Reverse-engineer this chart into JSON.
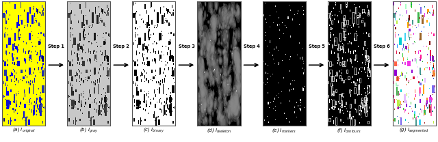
{
  "figure_width": 6.4,
  "figure_height": 2.08,
  "dpi": 100,
  "panels": [
    {
      "label": "(a) $I_{original}$",
      "type": "original"
    },
    {
      "label": "(b) $I_{gray}$",
      "type": "gray"
    },
    {
      "label": "(c) $I_{binary}$",
      "type": "binary"
    },
    {
      "label": "(d) $I_{skeleton}$",
      "type": "skeleton"
    },
    {
      "label": "(e) $I_{markers}$",
      "type": "markers"
    },
    {
      "label": "(f) $I_{contours}$",
      "type": "contours"
    },
    {
      "label": "(g) $I_{segmented}$",
      "type": "segmented"
    }
  ],
  "arrows": [
    "Step 1",
    "Step 2",
    "Step 3",
    "Step 4",
    "Step 5",
    "Step 6"
  ],
  "background_color": "#ffffff",
  "panel_border_color": "#555555",
  "caption_fontsize": 5.0,
  "arrow_fontsize": 4.8,
  "num_drops": 500,
  "seed": 42
}
